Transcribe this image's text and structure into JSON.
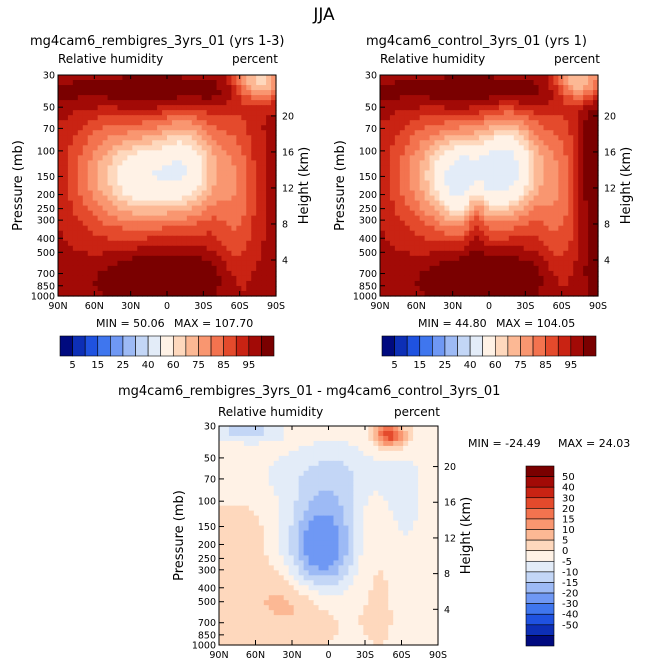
{
  "main_title": "JJA",
  "colors": {
    "rh_scale": [
      "#000a7f",
      "#0d2fb6",
      "#1f52e0",
      "#3f76ee",
      "#6f98f4",
      "#9dbaf5",
      "#c3d6f6",
      "#e3ecf8",
      "#fff2e6",
      "#fed8bd",
      "#fcb894",
      "#f99670",
      "#f3734f",
      "#e44a2c",
      "#c92313",
      "#a20a06",
      "#7a0000"
    ],
    "diff_scale": [
      "#000a7f",
      "#0d2fb6",
      "#1f52e0",
      "#3f76ee",
      "#6f98f4",
      "#9dbaf5",
      "#c3d6f6",
      "#e3ecf8",
      "#fff2e6",
      "#fed8bd",
      "#fcb894",
      "#f99670",
      "#f3734f",
      "#e44a2c",
      "#c92313",
      "#a20a06",
      "#7a0000"
    ]
  },
  "chart_data": [
    {
      "type": "heatmap",
      "title": "mg4cam6_rembigres_3yrs_01 (yrs 1-3)",
      "subtitle_left": "Relative humidity",
      "subtitle_right": "percent",
      "ylabel": "Pressure (mb)",
      "ylabel_right": "Height (km)",
      "x_ticks": [
        "90N",
        "60N",
        "30N",
        "0",
        "30S",
        "60S",
        "90S"
      ],
      "x_values": [
        90,
        60,
        30,
        0,
        -30,
        -60,
        -90
      ],
      "y_ticks": [
        "30",
        "50",
        "70",
        "100",
        "150",
        "200",
        "250",
        "300",
        "400",
        "500",
        "700",
        "850",
        "1000"
      ],
      "y_values": [
        30,
        50,
        70,
        100,
        150,
        200,
        250,
        300,
        400,
        500,
        700,
        850,
        1000
      ],
      "y_right_ticks": [
        "20",
        "16",
        "12",
        "8",
        "4"
      ],
      "y_right_values": [
        20,
        16,
        12,
        8,
        4
      ],
      "ylim": [
        1000,
        30
      ],
      "min_label": "MIN = 50.06",
      "max_label": "MAX = 107.70",
      "min": 50.06,
      "max": 107.7
    },
    {
      "type": "heatmap",
      "title": "mg4cam6_control_3yrs_01 (yrs 1)",
      "subtitle_left": "Relative humidity",
      "subtitle_right": "percent",
      "ylabel": "Pressure (mb)",
      "ylabel_right": "Height (km)",
      "x_ticks": [
        "90N",
        "60N",
        "30N",
        "0",
        "30S",
        "60S",
        "90S"
      ],
      "x_values": [
        90,
        60,
        30,
        0,
        -30,
        -60,
        -90
      ],
      "y_ticks": [
        "30",
        "50",
        "70",
        "100",
        "150",
        "200",
        "250",
        "300",
        "400",
        "500",
        "700",
        "850",
        "1000"
      ],
      "y_values": [
        30,
        50,
        70,
        100,
        150,
        200,
        250,
        300,
        400,
        500,
        700,
        850,
        1000
      ],
      "y_right_ticks": [
        "20",
        "16",
        "12",
        "8",
        "4"
      ],
      "y_right_values": [
        20,
        16,
        12,
        8,
        4
      ],
      "ylim": [
        1000,
        30
      ],
      "min_label": "MIN = 44.80",
      "max_label": "MAX = 104.05",
      "min": 44.8,
      "max": 104.05
    },
    {
      "type": "heatmap",
      "title": "mg4cam6_rembigres_3yrs_01 - mg4cam6_control_3yrs_01",
      "subtitle_left": "Relative humidity",
      "subtitle_right": "percent",
      "ylabel": "Pressure (mb)",
      "ylabel_right": "Height (km)",
      "x_ticks": [
        "90N",
        "60N",
        "30N",
        "0",
        "30S",
        "60S",
        "90S"
      ],
      "x_values": [
        90,
        60,
        30,
        0,
        -30,
        -60,
        -90
      ],
      "y_ticks": [
        "30",
        "50",
        "70",
        "100",
        "150",
        "200",
        "250",
        "300",
        "400",
        "500",
        "700",
        "850",
        "1000"
      ],
      "y_values": [
        30,
        50,
        70,
        100,
        150,
        200,
        250,
        300,
        400,
        500,
        700,
        850,
        1000
      ],
      "y_right_ticks": [
        "20",
        "16",
        "12",
        "8",
        "4"
      ],
      "y_right_values": [
        20,
        16,
        12,
        8,
        4
      ],
      "ylim": [
        1000,
        30
      ],
      "min_label": "MIN = -24.49",
      "max_label": "MAX = 24.03",
      "min": -24.49,
      "max": 24.03
    }
  ],
  "rh_colorbar": {
    "labels": [
      "5",
      "15",
      "25",
      "40",
      "60",
      "75",
      "85",
      "95"
    ],
    "levels": [
      5,
      10,
      15,
      20,
      25,
      30,
      40,
      50,
      60,
      65,
      70,
      75,
      80,
      85,
      90,
      95
    ]
  },
  "diff_colorbar": {
    "labels": [
      "50",
      "40",
      "30",
      "20",
      "15",
      "10",
      "5",
      "0",
      "-5",
      "-10",
      "-15",
      "-20",
      "-30",
      "-40",
      "-50"
    ],
    "levels": [
      50,
      40,
      30,
      20,
      15,
      10,
      5,
      0,
      -5,
      -10,
      -15,
      -20,
      -30,
      -40,
      -50
    ]
  }
}
